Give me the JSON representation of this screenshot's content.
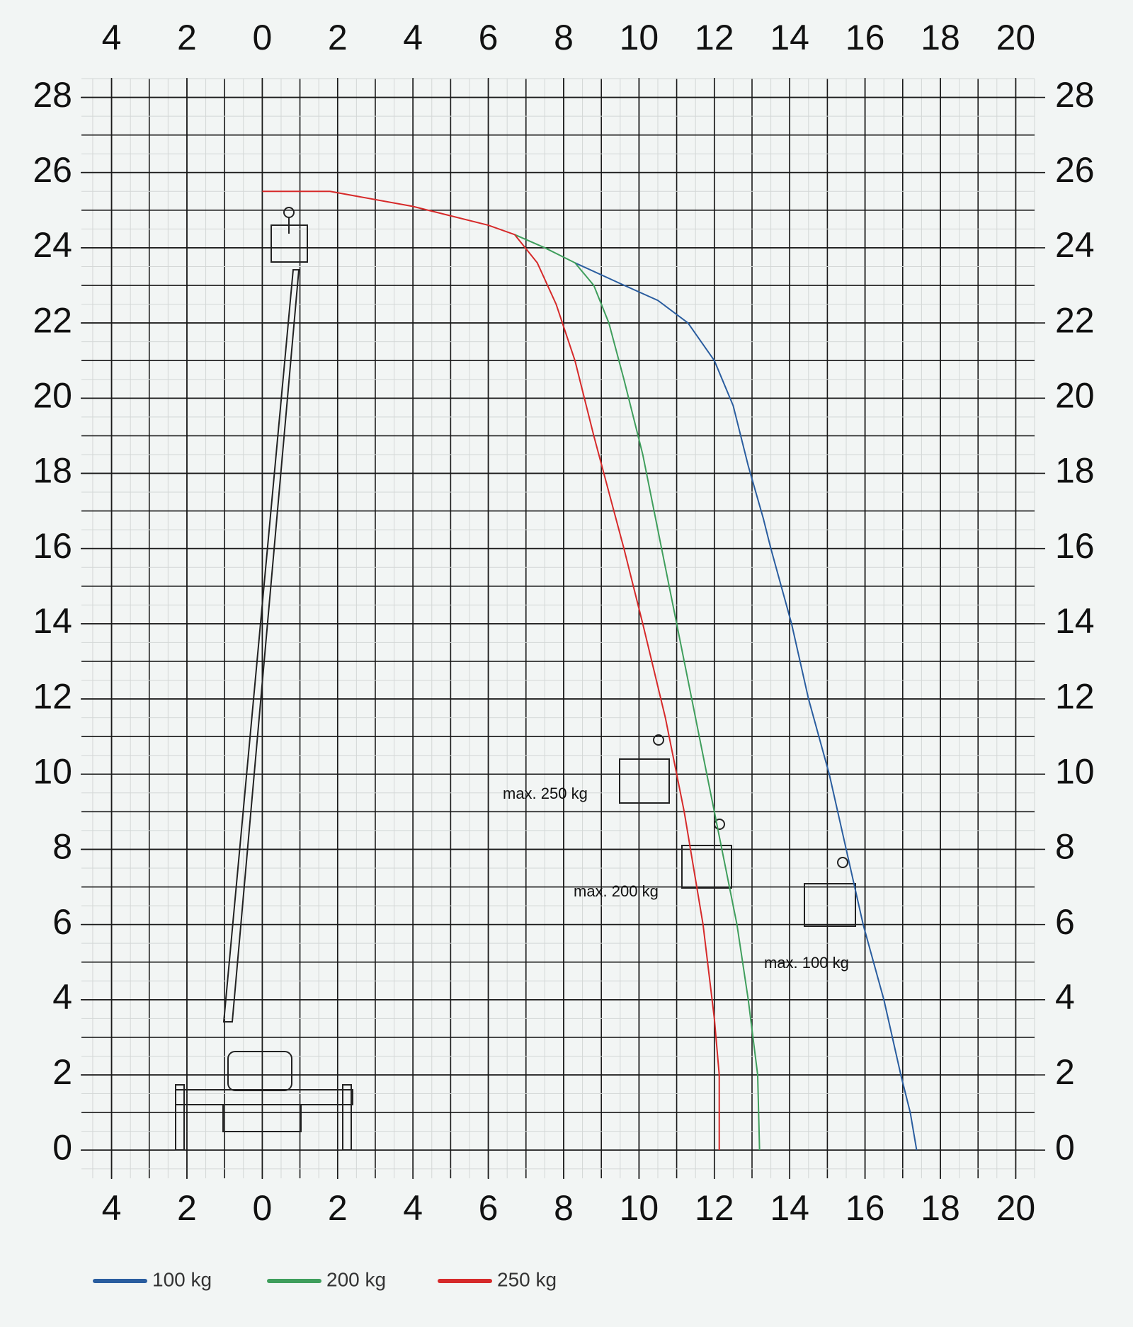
{
  "chart_data": {
    "type": "line",
    "xlim": [
      -4.8,
      20.5
    ],
    "ylim": [
      -0.75,
      28.5
    ],
    "xticks": [
      {
        "value": -4,
        "label": "4"
      },
      {
        "value": -2,
        "label": "2"
      },
      0,
      2,
      4,
      6,
      8,
      10,
      12,
      14,
      16,
      18,
      20
    ],
    "yticks": [
      0,
      2,
      4,
      6,
      8,
      10,
      12,
      14,
      16,
      18,
      20,
      22,
      24,
      26,
      28
    ],
    "grid": true,
    "legend": "bottom-left",
    "series": [
      {
        "name": "100 kg",
        "color": "#2a5d9f",
        "x": [
          8.3,
          9.5,
          10.5,
          11.3,
          12,
          12.5,
          12.9,
          13.3,
          13.5,
          14.05,
          14.5,
          15.05,
          15.5,
          15.95,
          16.5,
          16.95,
          17.2,
          17.37
        ],
        "values": [
          23.6,
          23.05,
          22.6,
          22,
          21,
          19.8,
          18.2,
          16.8,
          16,
          14,
          12,
          10,
          8,
          6,
          4,
          2,
          1,
          0
        ]
      },
      {
        "name": "200 kg",
        "color": "#3f9e5c",
        "x": [
          6.7,
          7.5,
          8.3,
          8.8,
          9.2,
          9.6,
          10.1,
          10.5,
          11.0,
          11.5,
          11.9,
          12.3,
          12.6,
          12.9,
          13.15,
          13.2
        ],
        "values": [
          24.35,
          24.0,
          23.6,
          23,
          22,
          20.5,
          18.5,
          16.5,
          14,
          11.5,
          9.5,
          7.5,
          6,
          4,
          2,
          0
        ]
      },
      {
        "name": "250 kg",
        "color": "#d62a2a",
        "x": [
          0,
          1.8,
          4,
          6,
          6.7,
          7.3,
          7.8,
          8.3,
          8.8,
          9.2,
          9.6,
          10.1,
          10.7,
          11.2,
          11.7,
          12.0,
          12.13,
          12.13
        ],
        "values": [
          25.5,
          25.5,
          25.1,
          24.6,
          24.35,
          23.6,
          22.5,
          21,
          19,
          17.5,
          16,
          14,
          11.5,
          9,
          6,
          3.5,
          2,
          0
        ]
      }
    ],
    "annotations": [
      "max. 250 kg",
      "max. 200 kg",
      "max. 100 kg"
    ]
  }
}
